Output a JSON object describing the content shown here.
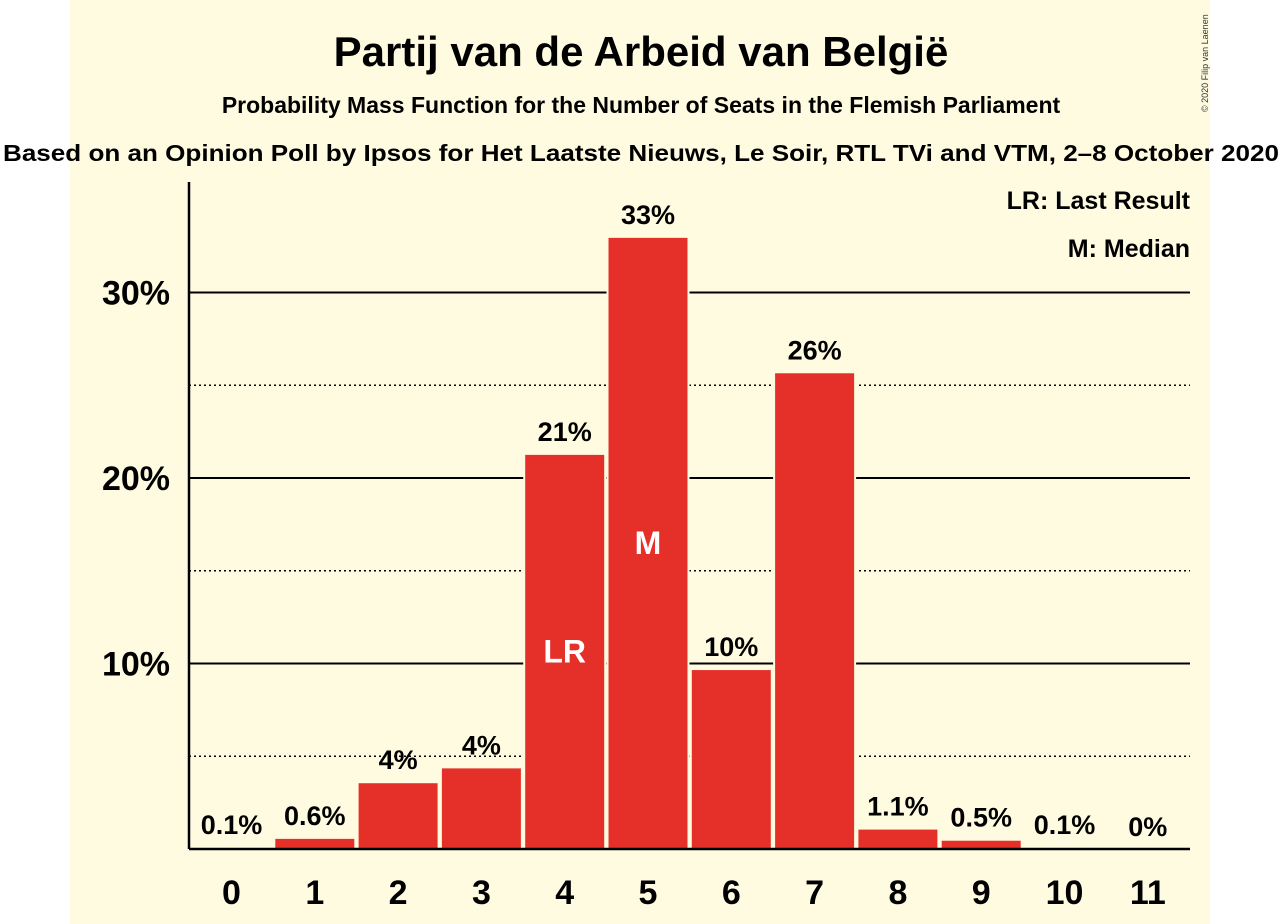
{
  "chart_data": {
    "type": "bar",
    "title": "Partij van de Arbeid van België",
    "subtitle": "Probability Mass Function for the Number of Seats in the Flemish Parliament",
    "subtitle2": "Based on an Opinion Poll by Ipsos for Het Laatste Nieuws, Le Soir, RTL TVi and VTM, 2–8 October 2020",
    "copyright": "© 2020 Filip van Laenen",
    "categories": [
      "0",
      "1",
      "2",
      "3",
      "4",
      "5",
      "6",
      "7",
      "8",
      "9",
      "10",
      "11"
    ],
    "values": [
      0.1,
      0.6,
      3.6,
      4.4,
      21.3,
      33.0,
      9.7,
      25.7,
      1.1,
      0.5,
      0.1,
      0.0
    ],
    "data_labels": [
      "0.1%",
      "0.6%",
      "4%",
      "4%",
      "21%",
      "33%",
      "10%",
      "26%",
      "1.1%",
      "0.5%",
      "0.1%",
      "0%"
    ],
    "yticks": [
      {
        "value": 10,
        "label": "10%"
      },
      {
        "value": 20,
        "label": "20%"
      },
      {
        "value": 30,
        "label": "30%"
      }
    ],
    "minor_gridlines": [
      5,
      15,
      25
    ],
    "ylim": [
      0,
      36
    ],
    "last_result_index": 4,
    "median_index": 5,
    "last_result_marker": "LR",
    "median_marker": "M",
    "legend": [
      "LR: Last Result",
      "M: Median"
    ],
    "legend_position": "top-right",
    "bar_color": "#e5302a",
    "background_color": "#fffbe0"
  }
}
